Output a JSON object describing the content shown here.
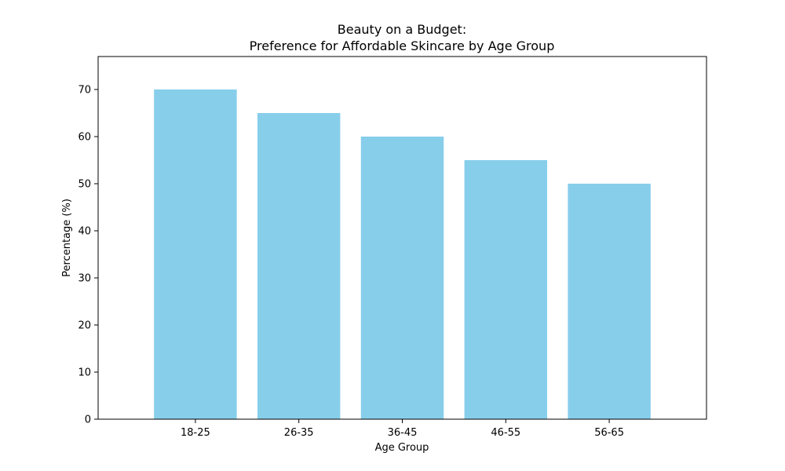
{
  "chart_data": {
    "type": "bar",
    "title_lines": [
      "Beauty on a Budget:",
      "Preference for Affordable Skincare by Age Group"
    ],
    "xlabel": "Age Group",
    "ylabel": "Percentage (%)",
    "categories": [
      "18-25",
      "26-35",
      "36-45",
      "46-55",
      "56-65"
    ],
    "values": [
      70,
      65,
      60,
      55,
      50
    ],
    "ylim": [
      0,
      77
    ],
    "yticks": [
      0,
      10,
      20,
      30,
      40,
      50,
      60,
      70
    ],
    "bar_color": "#87CEEB",
    "grid": false,
    "legend": "none"
  }
}
